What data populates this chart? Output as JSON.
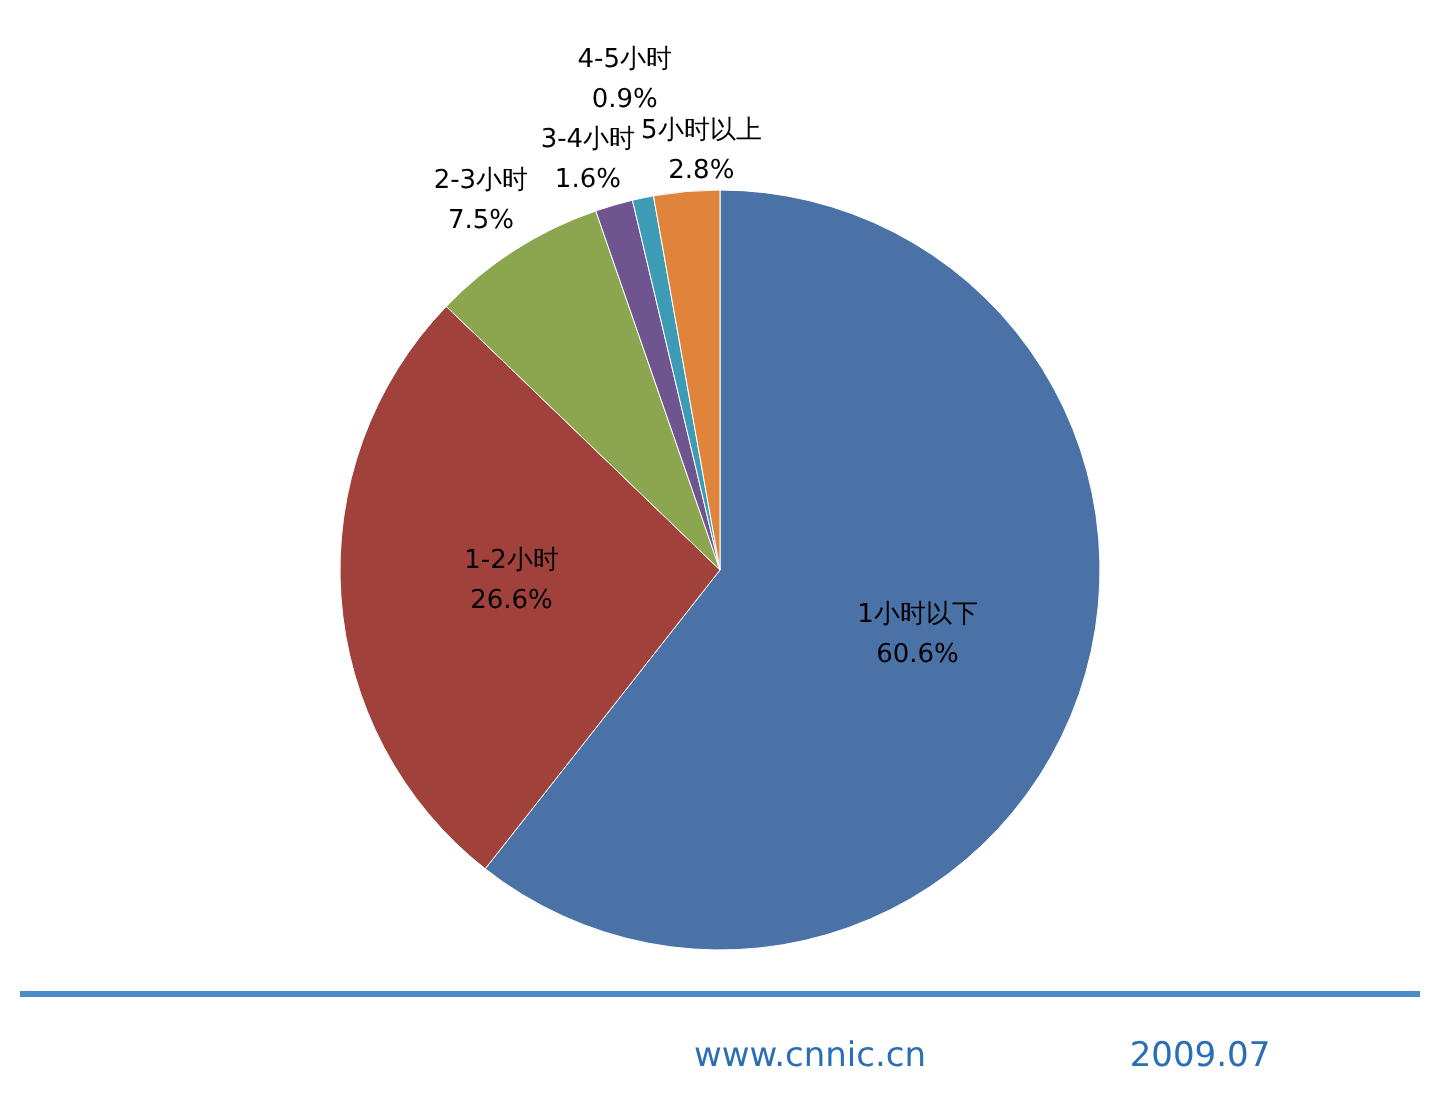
{
  "chart_data": {
    "type": "pie",
    "categories": [
      "1小时以下",
      "1-2小时",
      "2-3小时",
      "3-4小时",
      "4-5小时",
      "5小时以上"
    ],
    "values": [
      60.6,
      26.6,
      7.5,
      1.6,
      0.9,
      2.8
    ],
    "colors": [
      "#4a72a6",
      "#a0413c",
      "#8ba64e",
      "#6e558f",
      "#3d9bb5",
      "#e0843c"
    ],
    "value_labels": [
      "60.6%",
      "26.6%",
      "7.5%",
      "1.6%",
      "0.9%",
      "2.8%"
    ],
    "annotations": [
      "www.cnnic.cn",
      "2009.07"
    ]
  }
}
